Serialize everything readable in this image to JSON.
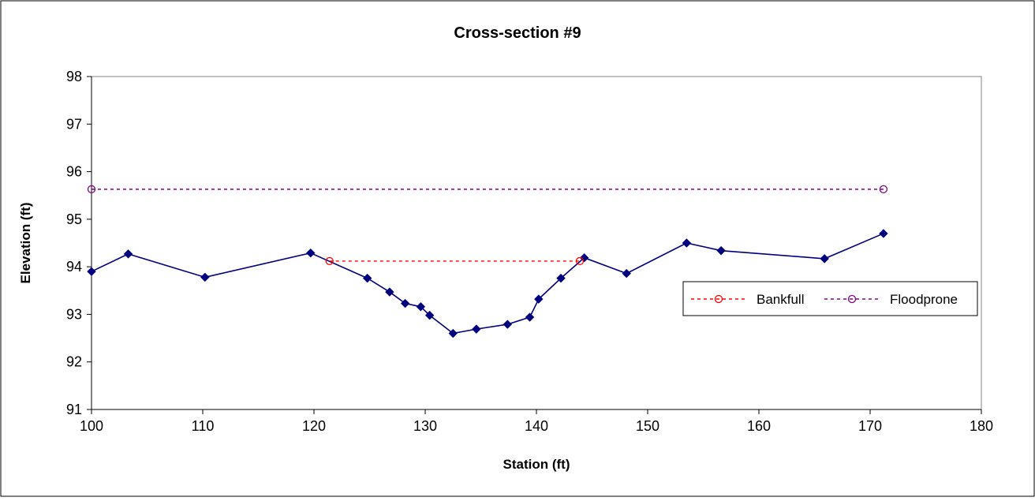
{
  "chart_data": {
    "type": "line",
    "title": "Cross-section #9",
    "xlabel": "Station (ft)",
    "ylabel": "Elevation (ft)",
    "xlim": [
      100,
      180
    ],
    "ylim": [
      91,
      98
    ],
    "xticks": [
      100,
      110,
      120,
      130,
      140,
      150,
      160,
      170,
      180
    ],
    "yticks": [
      91,
      92,
      93,
      94,
      95,
      96,
      97,
      98
    ],
    "grid": false,
    "legend_position": "right",
    "series": [
      {
        "color": "#000080",
        "marker": "diamond",
        "line_style": "solid",
        "in_legend": false,
        "x": [
          100.0,
          103.3,
          110.2,
          119.7,
          124.8,
          126.8,
          128.2,
          129.6,
          130.4,
          132.5,
          134.6,
          137.4,
          139.4,
          140.2,
          142.2,
          144.3,
          148.1,
          153.5,
          156.6,
          165.9,
          171.2
        ],
        "y": [
          93.9,
          94.27,
          93.78,
          94.29,
          93.76,
          93.47,
          93.23,
          93.16,
          92.98,
          92.6,
          92.69,
          92.79,
          92.94,
          93.32,
          93.76,
          94.19,
          93.86,
          94.5,
          94.34,
          94.17,
          94.7
        ]
      },
      {
        "name": "Bankfull",
        "color": "#FF0000",
        "marker": "circle-open",
        "line_style": "dotted",
        "in_legend": true,
        "x": [
          121.4,
          143.9
        ],
        "y": [
          94.12,
          94.12
        ]
      },
      {
        "name": "Floodprone",
        "color": "#800080",
        "marker": "circle-open",
        "line_style": "dotted",
        "in_legend": true,
        "x": [
          100.0,
          171.2
        ],
        "y": [
          95.63,
          95.63
        ]
      }
    ]
  }
}
